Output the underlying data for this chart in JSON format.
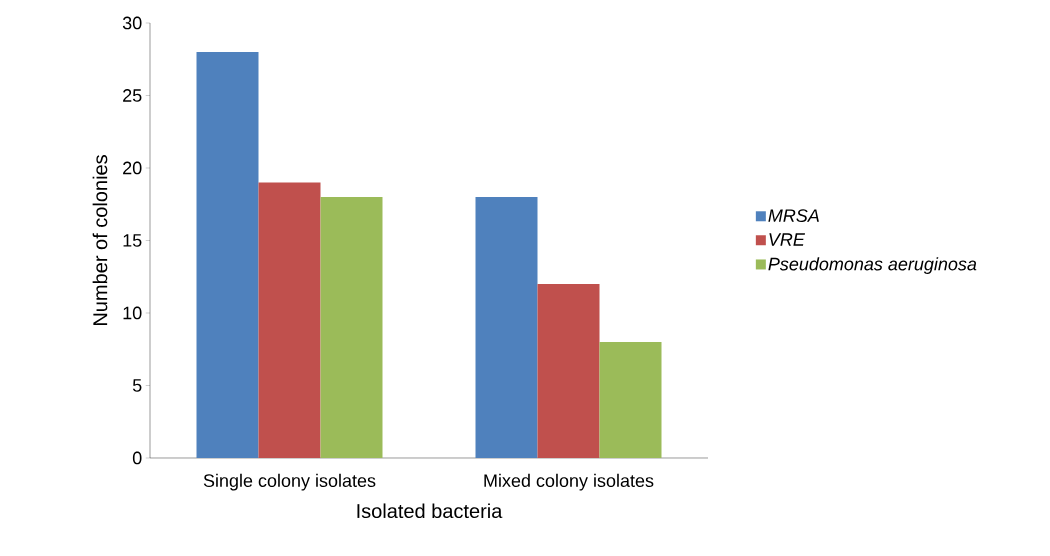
{
  "chart_data": {
    "type": "bar",
    "xlabel": "Isolated bacteria",
    "ylabel": "Number of colonies",
    "categories": [
      "Single colony isolates",
      "Mixed colony isolates"
    ],
    "series": [
      {
        "name": "MRSA",
        "color": "#4f81bd",
        "values": [
          28,
          18
        ]
      },
      {
        "name": "VRE",
        "color": "#c0504d",
        "values": [
          19,
          12
        ]
      },
      {
        "name": "Pseudomonas aeruginosa",
        "color": "#9bbb59",
        "values": [
          18,
          8
        ]
      }
    ],
    "ylim": [
      0,
      30
    ],
    "yticks": [
      0,
      5,
      10,
      15,
      20,
      25,
      30
    ],
    "grid": false,
    "legend": "right"
  }
}
